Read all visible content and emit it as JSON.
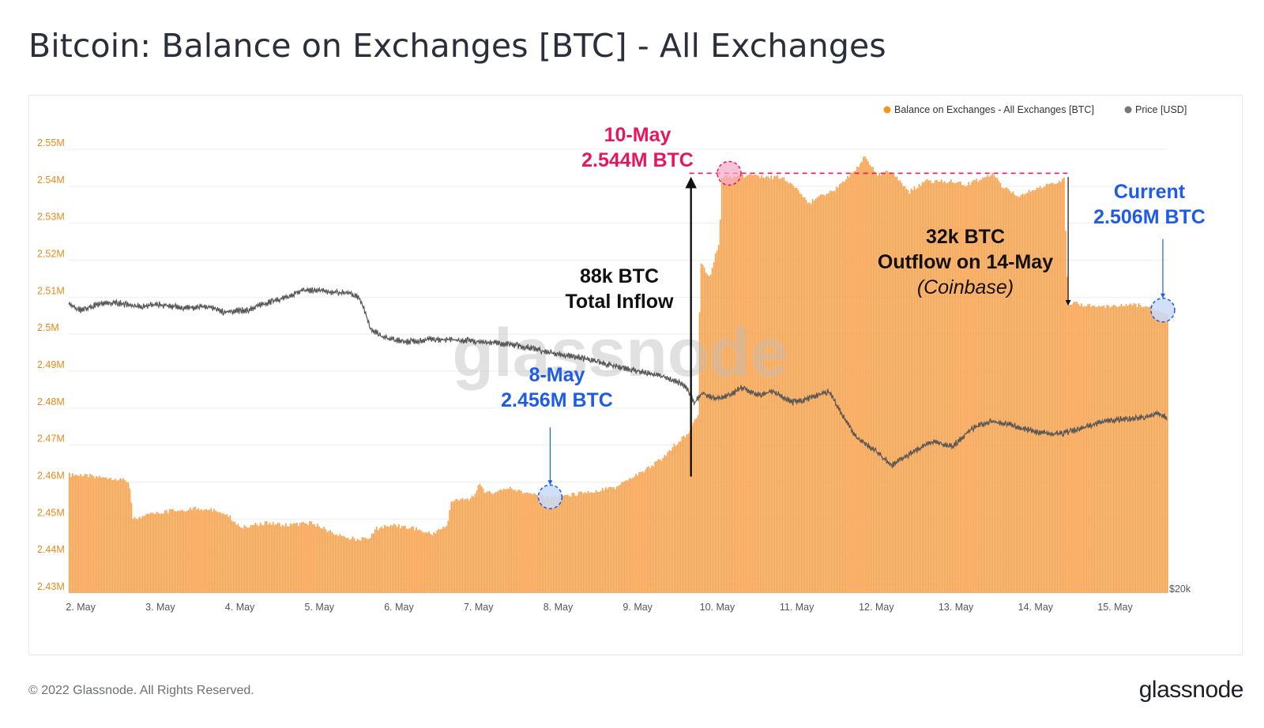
{
  "page": {
    "title": "Bitcoin: Balance on Exchanges [BTC] - All Exchanges",
    "footer_copyright": "© 2022 Glassnode. All Rights Reserved.",
    "footer_logo": "glassnode",
    "watermark": "glassnode"
  },
  "colors": {
    "balance": "#f7931a",
    "balance_fill": "#f9a04a",
    "price": "#555555",
    "axis_text": "#e8891a",
    "highlight_red": "#e8175d",
    "highlight_blue": "#1f5ce6",
    "grid": "#eeeeee"
  },
  "chart_data": {
    "type": "bar",
    "title": "Bitcoin: Balance on Exchanges [BTC] - All Exchanges",
    "legend": [
      {
        "label": "Balance on Exchanges - All Exchanges [BTC]",
        "color": "#f7931a"
      },
      {
        "label": "Price [USD]",
        "color": "#777777"
      }
    ],
    "legend_position": "top-right",
    "grid": true,
    "y_ticks": [
      "2.43M",
      "2.44M",
      "2.45M",
      "2.46M",
      "2.47M",
      "2.48M",
      "2.49M",
      "2.5M",
      "2.51M",
      "2.52M",
      "2.53M",
      "2.54M",
      "2.55M"
    ],
    "ylim": [
      2.43,
      2.55
    ],
    "y_unit": "M BTC",
    "right_axis_label": "$20k",
    "x_ticks": [
      "2. May",
      "3. May",
      "4. May",
      "5. May",
      "6. May",
      "7. May",
      "8. May",
      "9. May",
      "10. May",
      "11. May",
      "12. May",
      "13. May",
      "14. May",
      "15. May"
    ],
    "x_range_days": [
      1.85,
      15.65
    ],
    "balance_series": {
      "name": "Balance on Exchanges - All Exchanges [BTC]",
      "points": [
        [
          1.85,
          2.4625
        ],
        [
          2.3,
          2.462
        ],
        [
          2.45,
          2.4615
        ],
        [
          2.6,
          2.461
        ],
        [
          2.65,
          2.4505
        ],
        [
          2.9,
          2.452
        ],
        [
          3.2,
          2.453
        ],
        [
          3.5,
          2.4535
        ],
        [
          3.8,
          2.4525
        ],
        [
          4.0,
          2.4485
        ],
        [
          4.3,
          2.4495
        ],
        [
          4.6,
          2.449
        ],
        [
          4.9,
          2.4495
        ],
        [
          5.1,
          2.4475
        ],
        [
          5.3,
          2.4455
        ],
        [
          5.6,
          2.445
        ],
        [
          5.7,
          2.448
        ],
        [
          5.9,
          2.449
        ],
        [
          6.2,
          2.448
        ],
        [
          6.4,
          2.4465
        ],
        [
          6.6,
          2.449
        ],
        [
          6.65,
          2.4555
        ],
        [
          6.9,
          2.456
        ],
        [
          7.0,
          2.46
        ],
        [
          7.1,
          2.4575
        ],
        [
          7.4,
          2.459
        ],
        [
          7.6,
          2.4575
        ],
        [
          7.85,
          2.4565
        ],
        [
          8.1,
          2.457
        ],
        [
          8.4,
          2.458
        ],
        [
          8.7,
          2.459
        ],
        [
          8.9,
          2.4615
        ],
        [
          9.1,
          2.464
        ],
        [
          9.3,
          2.467
        ],
        [
          9.45,
          2.4705
        ],
        [
          9.65,
          2.4745
        ],
        [
          9.75,
          2.479
        ],
        [
          9.78,
          2.52
        ],
        [
          9.9,
          2.516
        ],
        [
          10.02,
          2.526
        ],
        [
          10.05,
          2.543
        ],
        [
          10.3,
          2.5435
        ],
        [
          10.6,
          2.543
        ],
        [
          10.8,
          2.543
        ],
        [
          11.0,
          2.54
        ],
        [
          11.15,
          2.536
        ],
        [
          11.3,
          2.538
        ],
        [
          11.5,
          2.54
        ],
        [
          11.7,
          2.5445
        ],
        [
          11.85,
          2.5485
        ],
        [
          12.0,
          2.544
        ],
        [
          12.2,
          2.5445
        ],
        [
          12.4,
          2.539
        ],
        [
          12.6,
          2.542
        ],
        [
          12.9,
          2.542
        ],
        [
          13.1,
          2.541
        ],
        [
          13.3,
          2.5425
        ],
        [
          13.45,
          2.544
        ],
        [
          13.6,
          2.54
        ],
        [
          13.8,
          2.538
        ],
        [
          14.0,
          2.54
        ],
        [
          14.2,
          2.5415
        ],
        [
          14.35,
          2.5425
        ],
        [
          14.4,
          2.509
        ],
        [
          14.8,
          2.508
        ],
        [
          15.0,
          2.5085
        ],
        [
          15.3,
          2.5085
        ],
        [
          15.45,
          2.508
        ],
        [
          15.6,
          2.506
        ]
      ]
    },
    "price_series": {
      "name": "Price [USD]",
      "points": [
        [
          1.85,
          2.508
        ],
        [
          2.0,
          2.5065
        ],
        [
          2.2,
          2.508
        ],
        [
          2.45,
          2.5085
        ],
        [
          2.7,
          2.5075
        ],
        [
          3.0,
          2.508
        ],
        [
          3.3,
          2.507
        ],
        [
          3.6,
          2.5075
        ],
        [
          3.8,
          2.506
        ],
        [
          4.1,
          2.5065
        ],
        [
          4.35,
          2.5085
        ],
        [
          4.6,
          2.51
        ],
        [
          4.8,
          2.512
        ],
        [
          5.1,
          2.5115
        ],
        [
          5.4,
          2.511
        ],
        [
          5.5,
          2.51
        ],
        [
          5.65,
          2.5015
        ],
        [
          5.8,
          2.499
        ],
        [
          6.1,
          2.498
        ],
        [
          6.4,
          2.4985
        ],
        [
          6.7,
          2.4985
        ],
        [
          7.0,
          2.498
        ],
        [
          7.3,
          2.4975
        ],
        [
          7.6,
          2.4965
        ],
        [
          7.9,
          2.495
        ],
        [
          8.2,
          2.494
        ],
        [
          8.5,
          2.4925
        ],
        [
          8.8,
          2.491
        ],
        [
          9.1,
          2.4895
        ],
        [
          9.4,
          2.488
        ],
        [
          9.6,
          2.486
        ],
        [
          9.72,
          2.4815
        ],
        [
          9.8,
          2.484
        ],
        [
          10.0,
          2.4825
        ],
        [
          10.2,
          2.484
        ],
        [
          10.3,
          2.4855
        ],
        [
          10.5,
          2.4835
        ],
        [
          10.7,
          2.4845
        ],
        [
          10.95,
          2.4815
        ],
        [
          11.2,
          2.483
        ],
        [
          11.4,
          2.4845
        ],
        [
          11.55,
          2.479
        ],
        [
          11.75,
          2.472
        ],
        [
          11.95,
          2.469
        ],
        [
          12.2,
          2.4645
        ],
        [
          12.45,
          2.468
        ],
        [
          12.7,
          2.471
        ],
        [
          12.95,
          2.4695
        ],
        [
          13.2,
          2.4745
        ],
        [
          13.45,
          2.4765
        ],
        [
          13.7,
          2.4755
        ],
        [
          14.0,
          2.4735
        ],
        [
          14.3,
          2.473
        ],
        [
          14.6,
          2.4745
        ],
        [
          14.85,
          2.4765
        ],
        [
          15.1,
          2.477
        ],
        [
          15.35,
          2.4775
        ],
        [
          15.55,
          2.4785
        ],
        [
          15.65,
          2.4775
        ]
      ]
    },
    "reference_line": {
      "value": 2.5435,
      "from_day": 9.65,
      "to_day": 14.4
    }
  },
  "annotations": {
    "peak": {
      "line1": "10-May",
      "line2": "2.544M BTC",
      "day": 10.15,
      "value": 2.5435
    },
    "low": {
      "line1": "8-May",
      "line2": "2.456M BTC",
      "day": 7.9,
      "value": 2.456
    },
    "current": {
      "line1": "Current",
      "line2": "2.506M BTC",
      "day": 15.6,
      "value": 2.5065
    },
    "inflow": {
      "line1": "88k BTC",
      "line2": "Total Inflow",
      "day": 9.67,
      "from": 2.4615,
      "to": 2.541
    },
    "outflow": {
      "line1": "32k BTC",
      "line2": "Outflow on 14-May",
      "line3": "(Coinbase)",
      "day": 14.41,
      "from": 2.5425,
      "to": 2.5085
    }
  }
}
